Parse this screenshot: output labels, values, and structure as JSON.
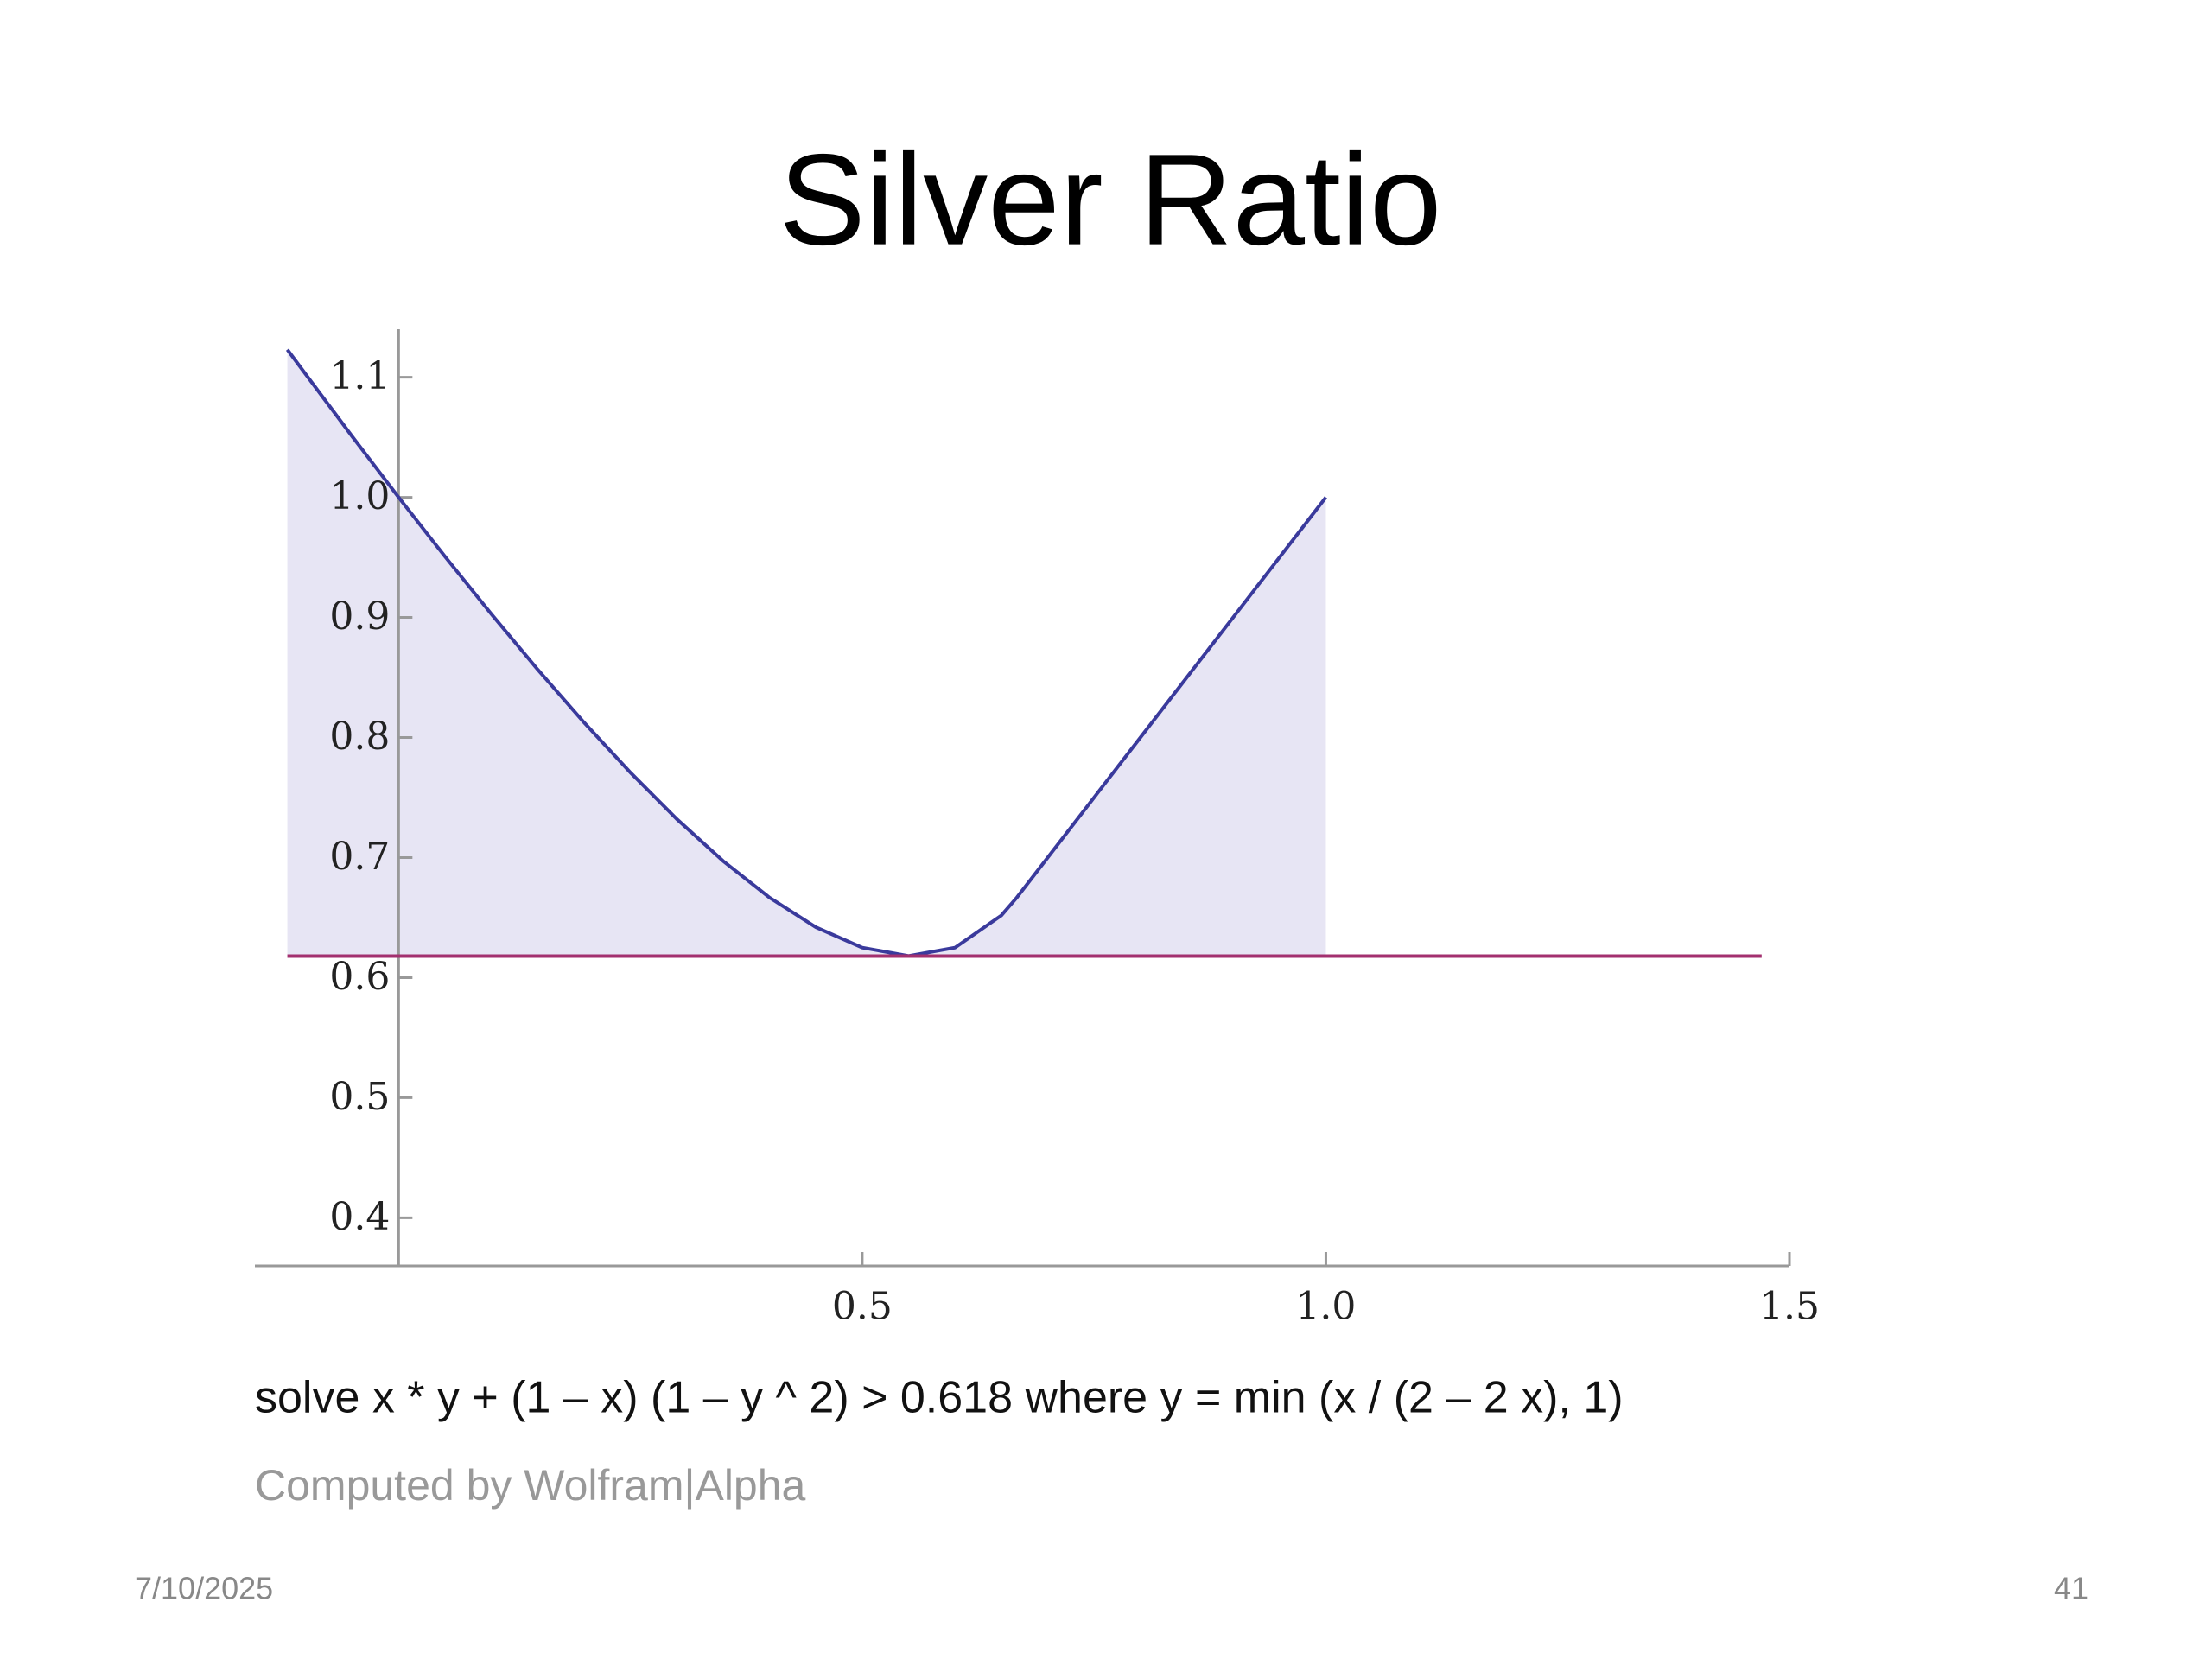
{
  "title": "Silver Ratio",
  "chart_data": {
    "type": "line",
    "series": [
      {
        "color": "#3a3a9c",
        "fill": "#e7e5f4",
        "x": [
          -0.12,
          -0.1,
          -0.05,
          0,
          0.05,
          0.1,
          0.15,
          0.2,
          0.25,
          0.3,
          0.35,
          0.4,
          0.45,
          0.5,
          0.55,
          0.6,
          0.65,
          0.6667,
          0.7,
          0.8,
          0.9,
          1.0
        ],
        "values": [
          1.123,
          1.1023,
          1.0506,
          1,
          0.9507,
          0.9028,
          0.8566,
          0.8125,
          0.7708,
          0.7321,
          0.6971,
          0.6667,
          0.642,
          0.625,
          0.6181,
          0.625,
          0.6518,
          0.6667,
          0.7,
          0.8,
          0.9,
          1.0
        ]
      },
      {
        "color": "#a3306f",
        "x": [
          -0.12,
          1.47
        ],
        "values": [
          0.618,
          0.618
        ]
      }
    ],
    "xlim": [
      -0.155,
      1.5
    ],
    "ylim": [
      0.36,
      1.14
    ],
    "xticks": [
      0.5,
      {
        "value": 1,
        "label": "1.0"
      },
      1.5
    ],
    "yticks": [
      0.4,
      0.5,
      0.6,
      0.7,
      0.8,
      0.9,
      {
        "value": 1,
        "label": "1.0"
      },
      1.1
    ],
    "caption": "solve x * y + (1 – x) (1 – y ^ 2) > 0.618 where y = min (x / (2 – 2 x), 1)",
    "credit": "Computed by Wolfram|Alpha"
  },
  "footer": {
    "date": "7/10/2025",
    "page": "41"
  }
}
